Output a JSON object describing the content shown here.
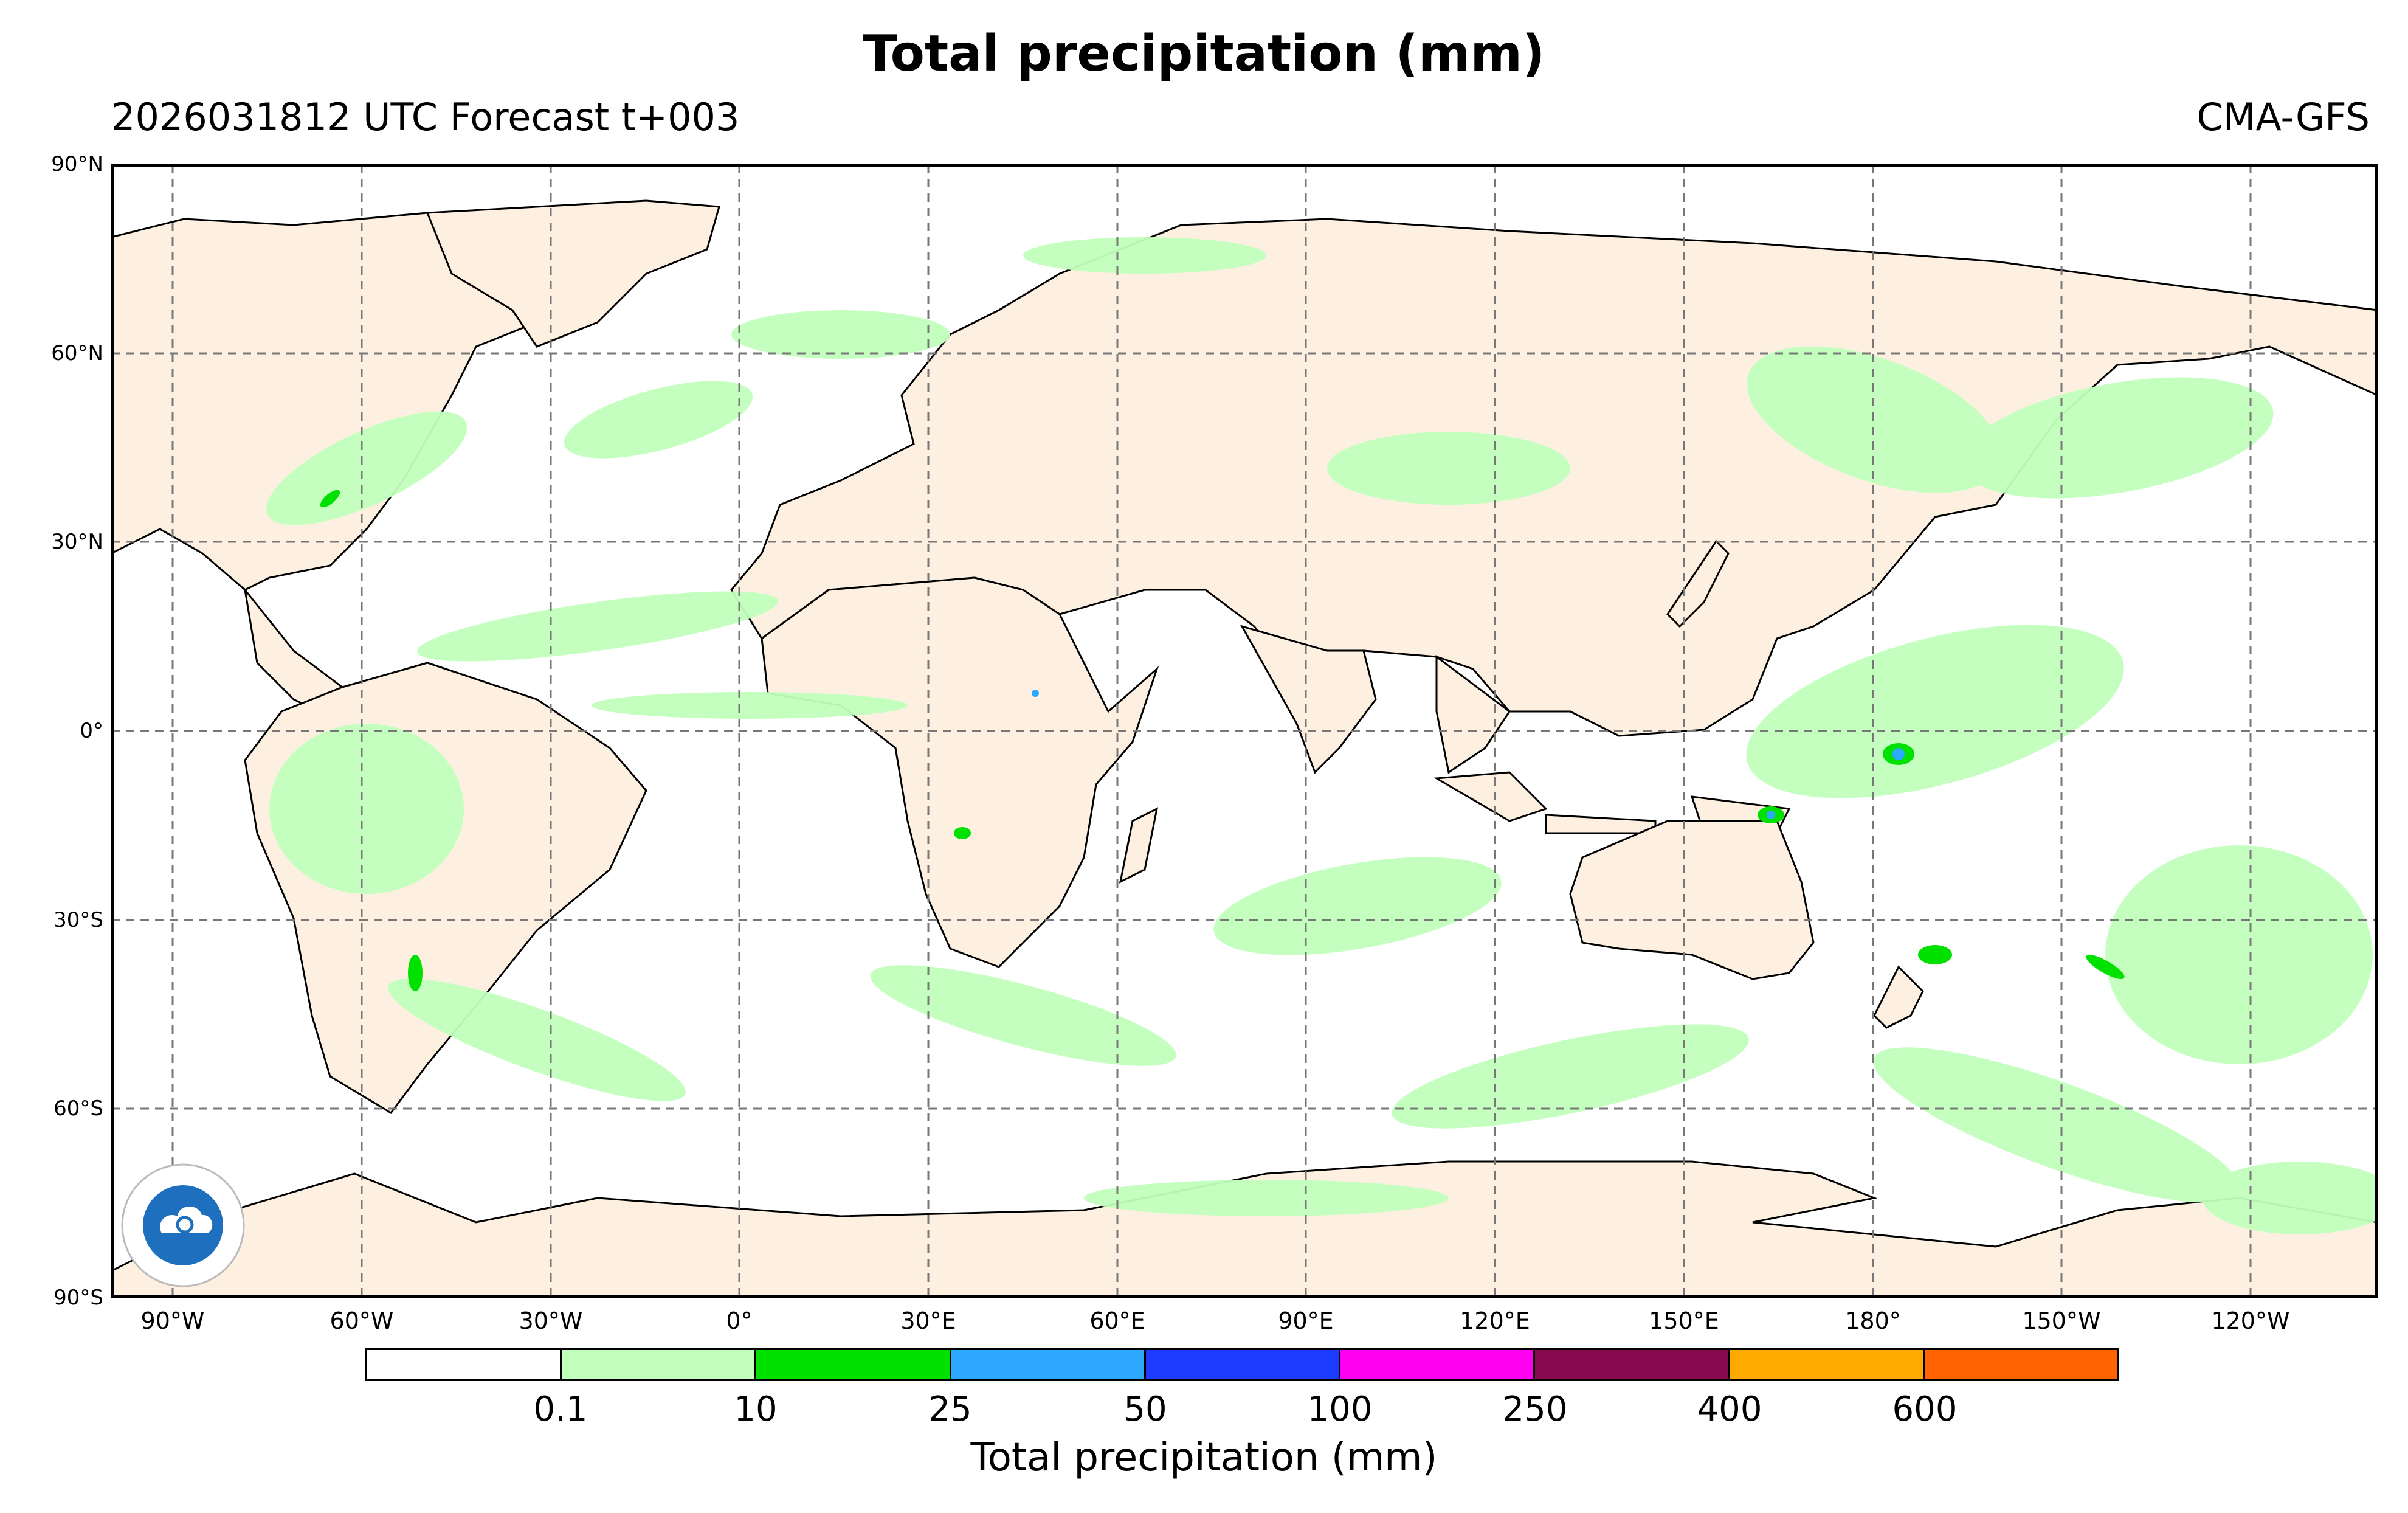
{
  "title": "Total precipitation (mm)",
  "subtitle_left": "2026031812 UTC Forecast t+003",
  "subtitle_right": "CMA-GFS",
  "lat_labels": [
    "90°N",
    "60°N",
    "30°N",
    "0°",
    "30°S",
    "60°S",
    "90°S"
  ],
  "lon_labels": [
    "90°W",
    "60°W",
    "30°W",
    "0°",
    "30°E",
    "60°E",
    "90°E",
    "120°E",
    "150°E",
    "180°",
    "150°W",
    "120°W"
  ],
  "colorbar": {
    "label": "Total precipitation (mm)",
    "ticks": [
      "0.1",
      "10",
      "25",
      "50",
      "100",
      "250",
      "400",
      "600"
    ],
    "colors": [
      "#ffffff",
      "#c2ffbd",
      "#00e100",
      "#2da8ff",
      "#1e3cff",
      "#ff00f0",
      "#870a50",
      "#ffaa00",
      "#ff6400"
    ]
  },
  "map_colors": {
    "land": "#fdf0e1",
    "ocean": "#ffffff",
    "light_rain": "#c2ffbd",
    "moderate_rain": "#00e100",
    "heavy_rain": "#2da8ff"
  }
}
